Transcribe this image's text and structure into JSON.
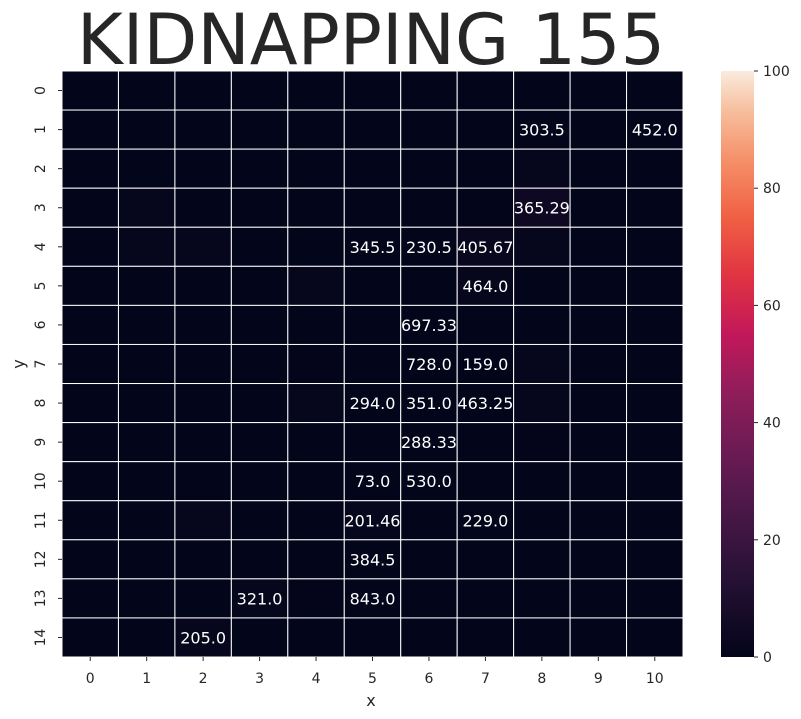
{
  "chart_data": {
    "type": "heatmap",
    "title": "KIDNAPPING 155",
    "xlabel": "x",
    "ylabel": "y",
    "x_categories": [
      "0",
      "1",
      "2",
      "3",
      "4",
      "5",
      "6",
      "7",
      "8",
      "9",
      "10"
    ],
    "y_categories": [
      "0",
      "1",
      "2",
      "3",
      "4",
      "5",
      "6",
      "7",
      "8",
      "9",
      "10",
      "11",
      "12",
      "13",
      "14"
    ],
    "color_range": [
      0,
      100
    ],
    "colorbar_ticks": [
      "0",
      "20",
      "40",
      "60",
      "80",
      "100"
    ],
    "values": [
      [
        0,
        0,
        0,
        0,
        0,
        0,
        0,
        0,
        0,
        0,
        0
      ],
      [
        0,
        0,
        0,
        0,
        0,
        0,
        0,
        0,
        0,
        0,
        0
      ],
      [
        0,
        0,
        0,
        0,
        0,
        0,
        0,
        0,
        1,
        0,
        0
      ],
      [
        0,
        1,
        0,
        0,
        0,
        0,
        0,
        0,
        4,
        0,
        0
      ],
      [
        0,
        1,
        1,
        0,
        0,
        0,
        0,
        2,
        1,
        0,
        0
      ],
      [
        0,
        0,
        0,
        0,
        1,
        0,
        0,
        1,
        0,
        0,
        0
      ],
      [
        0,
        0,
        0,
        0,
        0,
        0,
        0,
        0,
        0,
        0,
        0
      ],
      [
        0,
        0,
        0,
        0,
        0.5,
        0,
        0,
        0,
        1,
        0,
        0
      ],
      [
        0,
        0,
        0,
        0,
        1,
        0,
        0,
        0,
        1,
        0,
        0
      ],
      [
        0,
        0,
        0,
        0,
        0,
        0,
        0,
        0,
        0.5,
        0,
        0
      ],
      [
        0,
        0,
        0,
        0,
        0,
        0,
        0,
        0,
        0,
        0,
        0
      ],
      [
        0,
        0,
        1,
        0,
        0,
        1,
        0,
        0,
        0,
        0,
        0
      ],
      [
        0,
        0,
        0,
        0,
        0,
        0,
        0,
        0,
        0,
        0,
        0
      ],
      [
        0,
        0,
        0,
        1,
        0.5,
        0,
        0,
        0,
        0,
        0,
        0
      ],
      [
        0,
        0,
        1,
        0,
        0,
        0,
        0,
        0,
        0,
        0,
        0
      ]
    ],
    "annotations": [
      {
        "x": 8,
        "y": 1,
        "text": "303.5"
      },
      {
        "x": 10,
        "y": 1,
        "text": "452.0"
      },
      {
        "x": 8,
        "y": 3,
        "text": "365.29"
      },
      {
        "x": 5,
        "y": 4,
        "text": "345.5"
      },
      {
        "x": 6,
        "y": 4,
        "text": "230.5"
      },
      {
        "x": 7,
        "y": 4,
        "text": "405.67"
      },
      {
        "x": 7,
        "y": 5,
        "text": "464.0"
      },
      {
        "x": 6,
        "y": 6,
        "text": "697.33"
      },
      {
        "x": 6,
        "y": 7,
        "text": "728.0"
      },
      {
        "x": 7,
        "y": 7,
        "text": "159.0"
      },
      {
        "x": 5,
        "y": 8,
        "text": "294.0"
      },
      {
        "x": 6,
        "y": 8,
        "text": "351.0"
      },
      {
        "x": 7,
        "y": 8,
        "text": "463.25"
      },
      {
        "x": 6,
        "y": 9,
        "text": "288.33"
      },
      {
        "x": 5,
        "y": 10,
        "text": "73.0"
      },
      {
        "x": 6,
        "y": 10,
        "text": "530.0"
      },
      {
        "x": 5,
        "y": 11,
        "text": "201.46"
      },
      {
        "x": 7,
        "y": 11,
        "text": "229.0"
      },
      {
        "x": 5,
        "y": 12,
        "text": "384.5"
      },
      {
        "x": 3,
        "y": 13,
        "text": "321.0"
      },
      {
        "x": 5,
        "y": 13,
        "text": "843.0"
      },
      {
        "x": 2,
        "y": 14,
        "text": "205.0"
      }
    ],
    "colormap": "rocket",
    "grid_line_color": "#ffffff"
  }
}
